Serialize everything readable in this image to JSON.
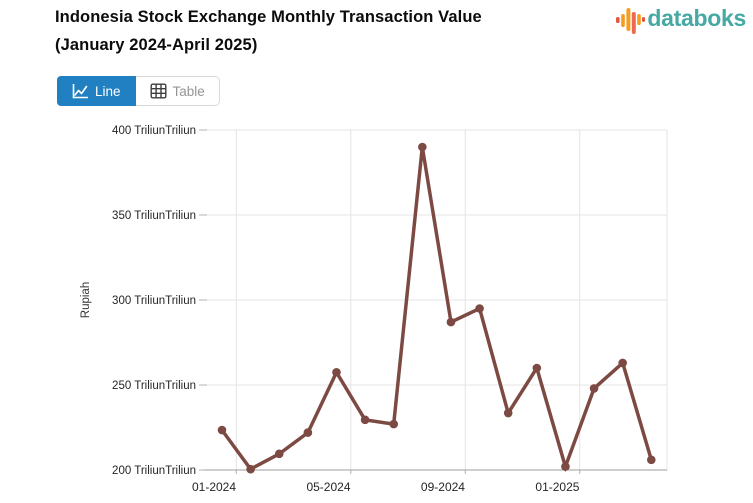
{
  "header": {
    "title_line1": "Indonesia Stock Exchange Monthly Transaction Value",
    "title_line2": "(January 2024-April 2025)",
    "logo_text": "databoks"
  },
  "toolbar": {
    "line_label": "Line",
    "table_label": "Table"
  },
  "chart_data": {
    "type": "line",
    "title": "Indonesia Stock Exchange Monthly Transaction Value (January 2024-April 2025)",
    "ylabel": "Rupiah",
    "ylim": [
      200,
      400
    ],
    "y_ticks": [
      200,
      250,
      300,
      350,
      400
    ],
    "y_tick_labels": [
      "200 TriliunTriliun",
      "250 TriliunTriliun",
      "300 TriliunTriliun",
      "350 TriliunTriliun",
      "400 TriliunTriliun"
    ],
    "categories": [
      "01-2024",
      "02-2024",
      "03-2024",
      "04-2024",
      "05-2024",
      "06-2024",
      "07-2024",
      "08-2024",
      "09-2024",
      "10-2024",
      "11-2024",
      "12-2024",
      "01-2025",
      "02-2025",
      "03-2025",
      "04-2025"
    ],
    "values": [
      223.5,
      200.5,
      209.5,
      222,
      257.5,
      229.5,
      227,
      390,
      287,
      295,
      233.5,
      260,
      202,
      248,
      263,
      206
    ],
    "x_tick_indices": [
      0,
      4,
      8,
      12
    ],
    "x_tick_labels": [
      "01-2024",
      "05-2024",
      "09-2024",
      "01-2025"
    ],
    "grid": true,
    "legend": false,
    "line_color": "#7d4a43",
    "grid_color": "#e4e4e4",
    "axis_color": "#9e9e9e",
    "tick_color": "#b3b3b3",
    "label_color": "#262626"
  },
  "logo_colors": {
    "orange": "#f59d20",
    "red": "#e4553e",
    "salmon": "#ed6a50",
    "teal": "#46a9a3"
  },
  "button_colors": {
    "active_bg": "#2180c2",
    "active_fg": "#ffffff",
    "inactive_fg": "#949494",
    "icon_dark": "#3d3d3d"
  }
}
